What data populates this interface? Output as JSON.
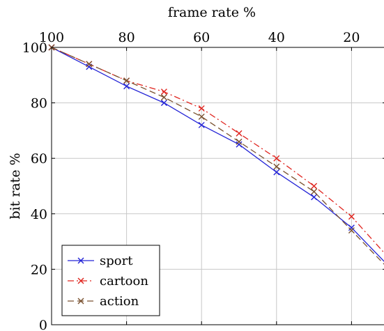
{
  "chart_data": {
    "type": "line",
    "title": "",
    "xlabel": "frame rate %",
    "ylabel": "bit rate %",
    "x_axis_position": "top",
    "x_reversed": true,
    "xlim": [
      100,
      10
    ],
    "ylim": [
      0,
      100
    ],
    "xticks": [
      100,
      80,
      60,
      40,
      20
    ],
    "yticks": [
      0,
      20,
      40,
      60,
      80,
      100
    ],
    "grid": true,
    "legend_position": "bottom-left",
    "x": [
      100,
      90,
      80,
      70,
      60,
      50,
      40,
      30,
      20,
      10
    ],
    "series": [
      {
        "name": "sport",
        "color": "#2424d6",
        "line_style": "solid",
        "marker": "x",
        "values": [
          100,
          93,
          86,
          80,
          72,
          65,
          55,
          46,
          35,
          21
        ]
      },
      {
        "name": "cartoon",
        "color": "#e0251f",
        "line_style": "dash-dot",
        "marker": "x",
        "values": [
          100,
          94,
          88,
          84,
          78,
          69,
          60,
          50,
          39,
          24
        ]
      },
      {
        "name": "action",
        "color": "#7a5230",
        "line_style": "dashed",
        "marker": "x",
        "values": [
          100,
          94,
          88,
          82,
          75,
          66,
          57,
          48,
          34,
          20
        ]
      }
    ]
  }
}
